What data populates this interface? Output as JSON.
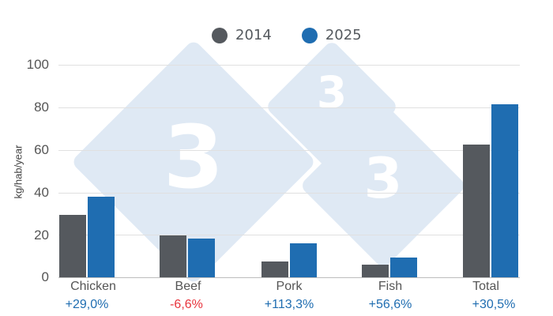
{
  "legend": [
    {
      "label": "2014",
      "color": "#55595e"
    },
    {
      "label": "2025",
      "color": "#1f6db1"
    }
  ],
  "ylabel": "kg/hab/year",
  "yticks": [
    "100",
    "80",
    "60",
    "40",
    "20",
    "0"
  ],
  "categories": [
    "Chicken",
    "Beef",
    "Pork",
    "Fish",
    "Total"
  ],
  "changes": [
    {
      "text": "+29,0%",
      "color": "#1f6db1"
    },
    {
      "text": "-6,6%",
      "color": "#e8343d"
    },
    {
      "text": "+113,3%",
      "color": "#1f6db1"
    },
    {
      "text": "+56,6%",
      "color": "#1f6db1"
    },
    {
      "text": "+30,5%",
      "color": "#1f6db1"
    }
  ],
  "watermark": "3",
  "chart_data": {
    "type": "bar",
    "title": "",
    "xlabel": "",
    "ylabel": "kg/hab/year",
    "ylim": [
      0,
      100
    ],
    "yticks": [
      0,
      20,
      40,
      60,
      80,
      100
    ],
    "grid": true,
    "legend_position": "top",
    "categories": [
      "Chicken",
      "Beef",
      "Pork",
      "Fish",
      "Total"
    ],
    "series": [
      {
        "name": "2014",
        "color": "#55595e",
        "values": [
          29.4,
          19.7,
          7.4,
          5.9,
          62.5
        ]
      },
      {
        "name": "2025",
        "color": "#1f6db1",
        "values": [
          37.9,
          18.4,
          15.8,
          9.3,
          81.5
        ]
      }
    ],
    "annotations": [
      "+29,0%",
      "-6,6%",
      "+113,3%",
      "+56,6%",
      "+30,5%"
    ]
  }
}
